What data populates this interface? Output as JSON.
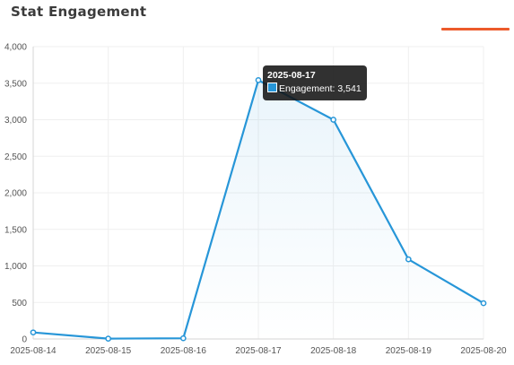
{
  "card": {
    "title": "Stat Engagement",
    "accent_color": "#ec5a2b"
  },
  "chart_data": {
    "type": "line",
    "x": [
      "2025-08-14",
      "2025-08-15",
      "2025-08-16",
      "2025-08-17",
      "2025-08-18",
      "2025-08-19",
      "2025-08-20"
    ],
    "series": [
      {
        "name": "Engagement",
        "values": [
          90,
          5,
          10,
          3541,
          3000,
          1090,
          490
        ],
        "color": "#2796d8"
      }
    ],
    "ylim": [
      0,
      4000
    ],
    "y_ticks": [
      "0",
      "500",
      "1,000",
      "1,500",
      "2,000",
      "2,500",
      "3,000",
      "3,500",
      "4,000"
    ],
    "grid": true,
    "area_fill": true
  },
  "tooltip": {
    "title": "2025-08-17",
    "label": "Engagement: 3,541"
  }
}
